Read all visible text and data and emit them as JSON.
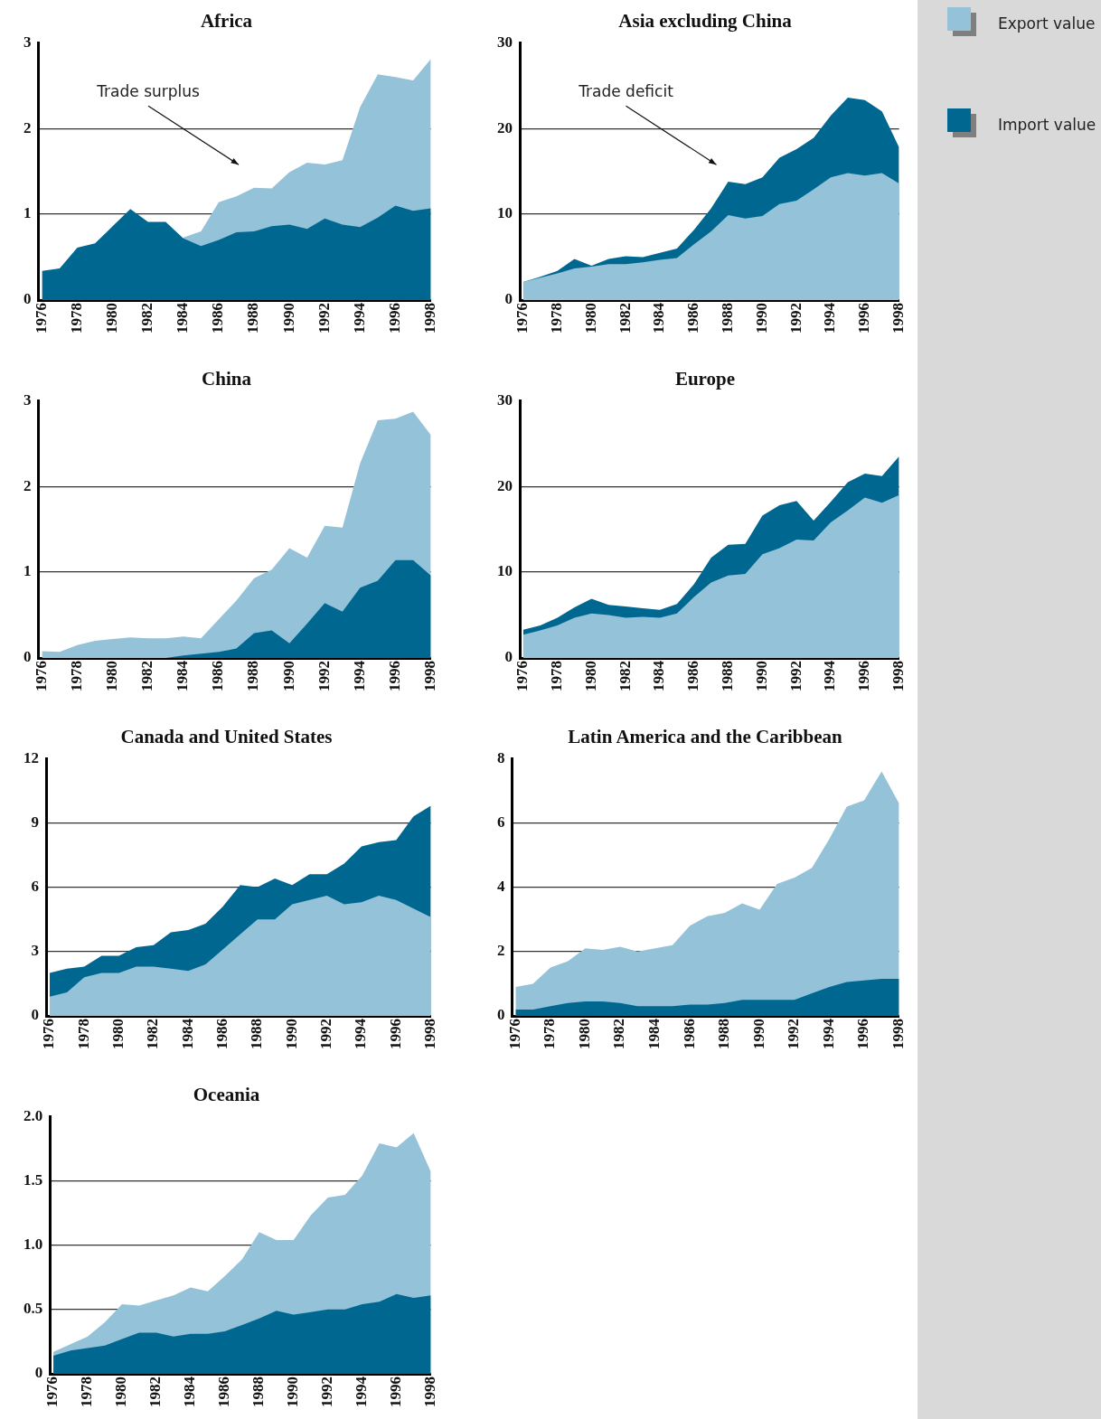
{
  "chart_data": [
    {
      "type": "area",
      "title": "Africa",
      "x": [
        1976,
        1977,
        1978,
        1979,
        1980,
        1981,
        1982,
        1983,
        1984,
        1985,
        1986,
        1987,
        1988,
        1989,
        1990,
        1991,
        1992,
        1993,
        1994,
        1995,
        1996,
        1997,
        1998
      ],
      "xlim": [
        1975.8,
        1998
      ],
      "xticks": [
        1976,
        1978,
        1980,
        1982,
        1984,
        1986,
        1988,
        1990,
        1992,
        1994,
        1996,
        1998
      ],
      "ylim": [
        0,
        3
      ],
      "yticks": [
        0,
        1,
        2,
        3
      ],
      "grid": "y",
      "legend": "right",
      "annotations": [
        "Trade surplus"
      ],
      "series": [
        {
          "name": "Export value",
          "color": "#94c2d8",
          "values": [
            null,
            null,
            null,
            null,
            null,
            null,
            null,
            null,
            0.73,
            0.8,
            1.14,
            1.21,
            1.31,
            1.3,
            1.49,
            1.6,
            1.58,
            1.63,
            2.25,
            2.63,
            2.6,
            2.56,
            2.81
          ]
        },
        {
          "name": "Import value",
          "color": "#006890",
          "values": [
            0.34,
            0.37,
            0.61,
            0.66,
            0.86,
            1.06,
            0.91,
            0.91,
            0.72,
            0.63,
            0.7,
            0.79,
            0.8,
            0.86,
            0.88,
            0.83,
            0.95,
            0.88,
            0.85,
            0.96,
            1.1,
            1.04,
            1.07
          ]
        }
      ]
    },
    {
      "type": "area",
      "title": "Asia excluding China",
      "x": [
        1976,
        1977,
        1978,
        1979,
        1980,
        1981,
        1982,
        1983,
        1984,
        1985,
        1986,
        1987,
        1988,
        1989,
        1990,
        1991,
        1992,
        1993,
        1994,
        1995,
        1996,
        1997,
        1998
      ],
      "xlim": [
        1975.8,
        1998
      ],
      "xticks": [
        1976,
        1978,
        1980,
        1982,
        1984,
        1986,
        1988,
        1990,
        1992,
        1994,
        1996,
        1998
      ],
      "ylim": [
        0,
        30
      ],
      "yticks": [
        0,
        10,
        20,
        30
      ],
      "grid": "y",
      "annotations": [
        "Trade deficit"
      ],
      "series": [
        {
          "color": "#006890",
          "values": [
            2.1,
            2.7,
            3.4,
            4.8,
            4.0,
            4.8,
            5.1,
            5.0,
            5.5,
            6.0,
            8.2,
            10.7,
            13.8,
            13.5,
            14.3,
            16.6,
            17.6,
            18.9,
            21.5,
            23.6,
            23.3,
            22.0,
            17.8
          ]
        },
        {
          "color": "#94c2d8",
          "values": [
            2.1,
            2.6,
            3.1,
            3.7,
            3.9,
            4.2,
            4.2,
            4.4,
            4.7,
            4.9,
            6.5,
            8.0,
            9.9,
            9.5,
            9.8,
            11.2,
            11.6,
            12.9,
            14.3,
            14.8,
            14.5,
            14.8,
            13.6
          ]
        }
      ]
    },
    {
      "type": "area",
      "title": "China",
      "x": [
        1976,
        1977,
        1978,
        1979,
        1980,
        1981,
        1982,
        1983,
        1984,
        1985,
        1986,
        1987,
        1988,
        1989,
        1990,
        1991,
        1992,
        1993,
        1994,
        1995,
        1996,
        1997,
        1998
      ],
      "xlim": [
        1975.8,
        1998
      ],
      "xticks": [
        1976,
        1978,
        1980,
        1982,
        1984,
        1986,
        1988,
        1990,
        1992,
        1994,
        1996,
        1998
      ],
      "ylim": [
        0,
        3
      ],
      "yticks": [
        0,
        1,
        2,
        3
      ],
      "grid": "y",
      "series": [
        {
          "color": "#94c2d8",
          "values": [
            0.08,
            0.07,
            0.15,
            0.2,
            0.22,
            0.24,
            0.23,
            0.23,
            0.25,
            0.23,
            0.45,
            0.67,
            0.93,
            1.03,
            1.28,
            1.17,
            1.54,
            1.52,
            2.27,
            2.77,
            2.79,
            2.87,
            2.6
          ]
        },
        {
          "color": "#006890",
          "values": [
            0,
            0,
            0,
            0,
            0,
            0,
            0,
            0,
            0.03,
            0.05,
            0.07,
            0.11,
            0.29,
            0.32,
            0.17,
            0.4,
            0.64,
            0.54,
            0.82,
            0.9,
            1.14,
            1.14,
            0.96
          ]
        }
      ]
    },
    {
      "type": "area",
      "title": "Europe",
      "x": [
        1976,
        1977,
        1978,
        1979,
        1980,
        1981,
        1982,
        1983,
        1984,
        1985,
        1986,
        1987,
        1988,
        1989,
        1990,
        1991,
        1992,
        1993,
        1994,
        1995,
        1996,
        1997,
        1998
      ],
      "xlim": [
        1975.8,
        1998
      ],
      "xticks": [
        1976,
        1978,
        1980,
        1982,
        1984,
        1986,
        1988,
        1990,
        1992,
        1994,
        1996,
        1998
      ],
      "ylim": [
        0,
        30
      ],
      "yticks": [
        0,
        10,
        20,
        30
      ],
      "grid": "y",
      "series": [
        {
          "color": "#006890",
          "values": [
            3.3,
            3.8,
            4.7,
            5.9,
            6.9,
            6.2,
            6.0,
            5.8,
            5.6,
            6.3,
            8.6,
            11.7,
            13.2,
            13.3,
            16.6,
            17.8,
            18.3,
            16.0,
            18.2,
            20.5,
            21.5,
            21.2,
            23.5
          ]
        },
        {
          "color": "#94c2d8",
          "values": [
            2.7,
            3.2,
            3.8,
            4.7,
            5.2,
            5.0,
            4.7,
            4.8,
            4.7,
            5.2,
            7.1,
            8.8,
            9.6,
            9.8,
            12.1,
            12.8,
            13.8,
            13.7,
            15.8,
            17.2,
            18.7,
            18.1,
            19.0
          ]
        }
      ]
    },
    {
      "type": "area",
      "title": "Canada and United States",
      "x": [
        1976,
        1977,
        1978,
        1979,
        1980,
        1981,
        1982,
        1983,
        1984,
        1985,
        1986,
        1987,
        1988,
        1989,
        1990,
        1991,
        1992,
        1993,
        1994,
        1995,
        1996,
        1997,
        1998
      ],
      "xlim": [
        1975.8,
        1998
      ],
      "xticks": [
        1976,
        1978,
        1980,
        1982,
        1984,
        1986,
        1988,
        1990,
        1992,
        1994,
        1996,
        1998
      ],
      "ylim": [
        0,
        12
      ],
      "yticks": [
        0,
        3,
        6,
        9,
        12
      ],
      "grid": "y",
      "series": [
        {
          "color": "#006890",
          "values": [
            2.0,
            2.2,
            2.3,
            2.8,
            2.8,
            3.2,
            3.3,
            3.9,
            4.0,
            4.3,
            5.1,
            6.1,
            6.0,
            6.4,
            6.1,
            6.6,
            6.6,
            7.1,
            7.9,
            8.1,
            8.2,
            9.3,
            9.8
          ]
        },
        {
          "color": "#94c2d8",
          "values": [
            0.9,
            1.1,
            1.8,
            2.0,
            2.0,
            2.3,
            2.3,
            2.2,
            2.1,
            2.4,
            3.1,
            3.8,
            4.5,
            4.5,
            5.2,
            5.4,
            5.6,
            5.2,
            5.3,
            5.6,
            5.4,
            5.0,
            4.6
          ]
        }
      ]
    },
    {
      "type": "area",
      "title": "Latin America and the Caribbean",
      "x": [
        1976,
        1977,
        1978,
        1979,
        1980,
        1981,
        1982,
        1983,
        1984,
        1985,
        1986,
        1987,
        1988,
        1989,
        1990,
        1991,
        1992,
        1993,
        1994,
        1995,
        1996,
        1997,
        1998
      ],
      "xlim": [
        1975.8,
        1998
      ],
      "xticks": [
        1976,
        1978,
        1980,
        1982,
        1984,
        1986,
        1988,
        1990,
        1992,
        1994,
        1996,
        1998
      ],
      "ylim": [
        0,
        8
      ],
      "yticks": [
        0,
        2,
        4,
        6,
        8
      ],
      "grid": "y",
      "series": [
        {
          "color": "#94c2d8",
          "values": [
            0.9,
            1.0,
            1.5,
            1.7,
            2.1,
            2.05,
            2.15,
            2.0,
            2.1,
            2.2,
            2.8,
            3.1,
            3.2,
            3.5,
            3.3,
            4.1,
            4.3,
            4.6,
            5.5,
            6.5,
            6.7,
            7.6,
            6.6
          ]
        },
        {
          "color": "#006890",
          "values": [
            0.2,
            0.2,
            0.3,
            0.4,
            0.45,
            0.45,
            0.4,
            0.3,
            0.3,
            0.3,
            0.35,
            0.35,
            0.4,
            0.5,
            0.5,
            0.5,
            0.5,
            0.7,
            0.9,
            1.05,
            1.1,
            1.15,
            1.15
          ]
        }
      ]
    },
    {
      "type": "area",
      "title": "Oceania",
      "x": [
        1976,
        1977,
        1978,
        1979,
        1980,
        1981,
        1982,
        1983,
        1984,
        1985,
        1986,
        1987,
        1988,
        1989,
        1990,
        1991,
        1992,
        1993,
        1994,
        1995,
        1996,
        1997,
        1998
      ],
      "xlim": [
        1975.8,
        1998
      ],
      "xticks": [
        1976,
        1978,
        1980,
        1982,
        1984,
        1986,
        1988,
        1990,
        1992,
        1994,
        1996,
        1998
      ],
      "ylim": [
        0,
        2
      ],
      "yticks": [
        0,
        {
          "value": 0.5,
          "label": "0.5"
        },
        {
          "value": 1,
          "label": "1.0"
        },
        {
          "value": 1.5,
          "label": "1.5"
        },
        {
          "value": 2,
          "label": "2.0"
        }
      ],
      "grid": "y",
      "series": [
        {
          "color": "#94c2d8",
          "values": [
            0.17,
            0.23,
            0.29,
            0.4,
            0.54,
            0.53,
            0.57,
            0.61,
            0.67,
            0.64,
            0.76,
            0.89,
            1.1,
            1.04,
            1.04,
            1.23,
            1.37,
            1.39,
            1.54,
            1.79,
            1.76,
            1.87,
            1.57
          ]
        },
        {
          "color": "#006890",
          "values": [
            0.14,
            0.18,
            0.2,
            0.22,
            0.27,
            0.32,
            0.32,
            0.29,
            0.31,
            0.31,
            0.33,
            0.38,
            0.43,
            0.49,
            0.46,
            0.48,
            0.5,
            0.5,
            0.54,
            0.56,
            0.62,
            0.59,
            0.61
          ]
        }
      ]
    }
  ]
}
